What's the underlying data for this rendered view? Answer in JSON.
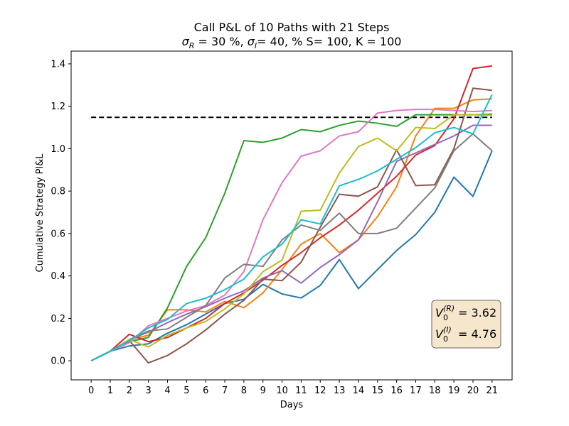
{
  "chart_data": {
    "type": "line",
    "title": "Call P&L of 10 Paths with 21 Steps",
    "subtitle_parts": [
      {
        "t": "σ",
        "s": "n"
      },
      {
        "t": "R",
        "s": "sub"
      },
      {
        "t": " = 30 %, ",
        "s": "n"
      },
      {
        "t": "σ",
        "s": "n"
      },
      {
        "t": "I",
        "s": "sub"
      },
      {
        "t": "= 40, % S= 100, K = 100",
        "s": "n"
      }
    ],
    "xlabel": "Days",
    "ylabel": "Cumulative Strategy Pl&L",
    "x": [
      0,
      1,
      2,
      3,
      4,
      5,
      6,
      7,
      8,
      9,
      10,
      11,
      12,
      13,
      14,
      15,
      16,
      17,
      18,
      19,
      20,
      21
    ],
    "xlim": [
      -1.05,
      22.05
    ],
    "ylim": [
      -0.09,
      1.46
    ],
    "yticks": [
      0.0,
      0.2,
      0.4,
      0.6,
      0.8,
      1.0,
      1.2,
      1.4
    ],
    "ytick_labels": [
      "0.0",
      "0.2",
      "0.4",
      "0.6",
      "0.8",
      "1.0",
      "1.2",
      "1.4"
    ],
    "reference_line": {
      "y": 1.148,
      "style": "dashed",
      "color": "#000000"
    },
    "series": [
      {
        "color": "#1f77b4",
        "values": [
          0.0,
          0.045,
          0.07,
          0.08,
          0.13,
          0.17,
          0.22,
          0.27,
          0.29,
          0.36,
          0.315,
          0.296,
          0.355,
          0.477,
          0.34,
          0.43,
          0.52,
          0.595,
          0.7,
          0.866,
          0.775,
          0.99
        ]
      },
      {
        "color": "#ff7f0e",
        "values": [
          0.0,
          0.045,
          0.1,
          0.12,
          0.24,
          0.24,
          0.23,
          0.28,
          0.25,
          0.32,
          0.43,
          0.55,
          0.6,
          0.51,
          0.57,
          0.68,
          0.82,
          1.06,
          1.19,
          1.19,
          1.23,
          1.235
        ]
      },
      {
        "color": "#2ca02c",
        "values": [
          0.0,
          0.045,
          0.09,
          0.11,
          0.25,
          0.445,
          0.58,
          0.79,
          1.038,
          1.03,
          1.05,
          1.09,
          1.08,
          1.11,
          1.13,
          1.12,
          1.105,
          1.16,
          1.16,
          1.16,
          1.16,
          1.16
        ]
      },
      {
        "color": "#d62728",
        "values": [
          0.0,
          0.045,
          0.125,
          0.09,
          0.11,
          0.155,
          0.2,
          0.27,
          0.32,
          0.38,
          0.45,
          0.51,
          0.58,
          0.64,
          0.71,
          0.79,
          0.87,
          0.97,
          1.015,
          1.14,
          1.378,
          1.39
        ]
      },
      {
        "color": "#9467bd",
        "values": [
          0.0,
          0.045,
          0.1,
          0.135,
          0.18,
          0.22,
          0.255,
          0.295,
          0.33,
          0.39,
          0.425,
          0.366,
          0.44,
          0.5,
          0.57,
          0.75,
          0.94,
          0.98,
          1.02,
          1.06,
          1.11,
          1.11
        ]
      },
      {
        "color": "#8c564b",
        "values": [
          0.0,
          0.045,
          0.095,
          -0.01,
          0.025,
          0.08,
          0.145,
          0.22,
          0.285,
          0.385,
          0.378,
          0.465,
          0.63,
          0.785,
          0.776,
          0.82,
          0.995,
          0.826,
          0.83,
          1.0,
          1.285,
          1.275
        ]
      },
      {
        "color": "#e377c2",
        "values": [
          0.0,
          0.045,
          0.085,
          0.165,
          0.2,
          0.235,
          0.26,
          0.31,
          0.42,
          0.665,
          0.84,
          0.965,
          0.99,
          1.06,
          1.08,
          1.168,
          1.18,
          1.185,
          1.185,
          1.18,
          1.175,
          1.18
        ]
      },
      {
        "color": "#7f7f7f",
        "values": [
          0.0,
          0.045,
          0.1,
          0.14,
          0.15,
          0.205,
          0.26,
          0.39,
          0.455,
          0.445,
          0.57,
          0.64,
          0.615,
          0.696,
          0.6,
          0.6,
          0.625,
          0.72,
          0.815,
          0.99,
          1.07,
          0.99
        ]
      },
      {
        "color": "#bcbd22",
        "values": [
          0.0,
          0.045,
          0.1,
          0.065,
          0.12,
          0.155,
          0.185,
          0.245,
          0.315,
          0.42,
          0.475,
          0.705,
          0.71,
          0.885,
          1.01,
          1.05,
          0.99,
          1.1,
          1.095,
          1.16,
          1.16,
          1.165
        ]
      },
      {
        "color": "#17becf",
        "values": [
          0.0,
          0.045,
          0.095,
          0.155,
          0.195,
          0.27,
          0.295,
          0.335,
          0.385,
          0.49,
          0.55,
          0.665,
          0.645,
          0.825,
          0.855,
          0.895,
          0.95,
          1.005,
          1.075,
          1.1,
          1.07,
          1.255
        ]
      }
    ],
    "annotation": {
      "line1": {
        "base": "V",
        "sub": "0",
        "sup": "(R)",
        "value": "= 3.62"
      },
      "line2": {
        "base": "V",
        "sub": "0",
        "sup": "(I)",
        "value": "= 4.76"
      },
      "box_color": "#f5e6cc",
      "edge_color": "#666666"
    }
  }
}
